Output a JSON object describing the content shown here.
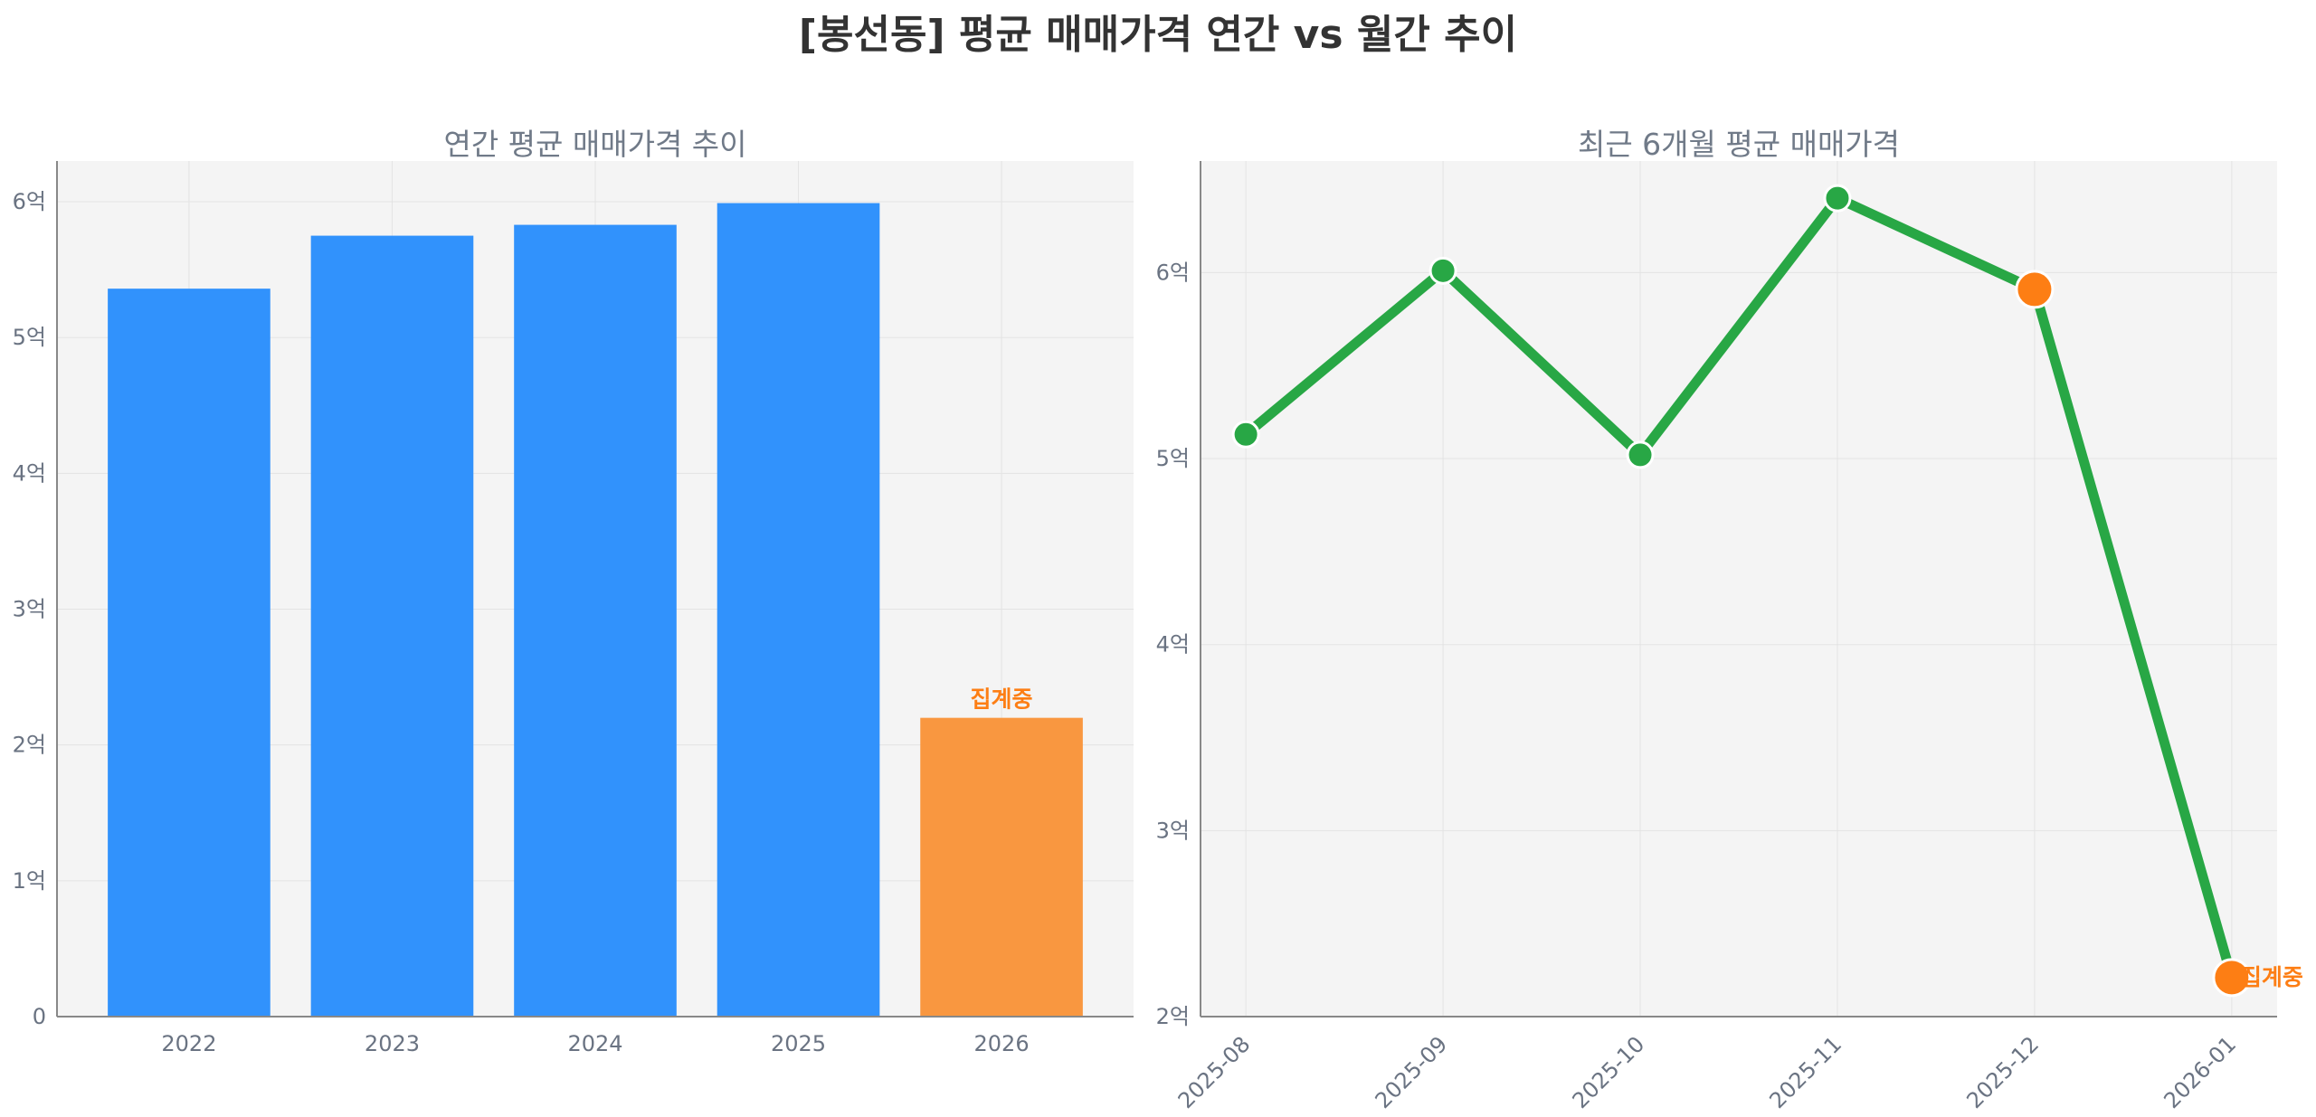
{
  "title": "[봉선동] 평균 매매가격 연간 vs 월간 추이",
  "colors": {
    "bar": "#3192fc",
    "bar_partial": "#f99740",
    "line": "#28a745",
    "marker_highlight": "#fd7e14",
    "plot_bg": "#f4f4f4",
    "grid": "#e3e3e3",
    "axis": "#888888"
  },
  "chart_data": [
    {
      "type": "bar",
      "title": "연간 평균 매매가격 추이",
      "categories": [
        "2022",
        "2023",
        "2024",
        "2025",
        "2026"
      ],
      "values": [
        5.36,
        5.75,
        5.83,
        5.99,
        2.2
      ],
      "partial": [
        false,
        false,
        false,
        false,
        true
      ],
      "annotations": [
        {
          "category": "2026",
          "text": "집계중"
        }
      ],
      "ylim": [
        0,
        6.3
      ],
      "yticks": [
        0,
        1,
        2,
        3,
        4,
        5,
        6
      ],
      "ytick_labels": [
        "0",
        "1억",
        "2억",
        "3억",
        "4억",
        "5억",
        "6억"
      ],
      "xlabel": "",
      "ylabel": "",
      "grid": true
    },
    {
      "type": "line",
      "title": "최근 6개월 평균 매매가격",
      "categories": [
        "2025-08",
        "2025-09",
        "2025-10",
        "2025-11",
        "2025-12",
        "2026-01"
      ],
      "values": [
        5.13,
        6.01,
        5.02,
        6.4,
        5.91,
        2.21
      ],
      "highlighted": [
        false,
        false,
        false,
        false,
        true,
        true
      ],
      "annotations": [
        {
          "category": "2026-01",
          "text": "집계중"
        }
      ],
      "ylim": [
        2,
        6.6
      ],
      "yticks": [
        2,
        3,
        4,
        5,
        6
      ],
      "ytick_labels": [
        "2억",
        "3억",
        "4억",
        "5억",
        "6억"
      ],
      "xlabel": "",
      "ylabel": "",
      "grid": true
    }
  ]
}
